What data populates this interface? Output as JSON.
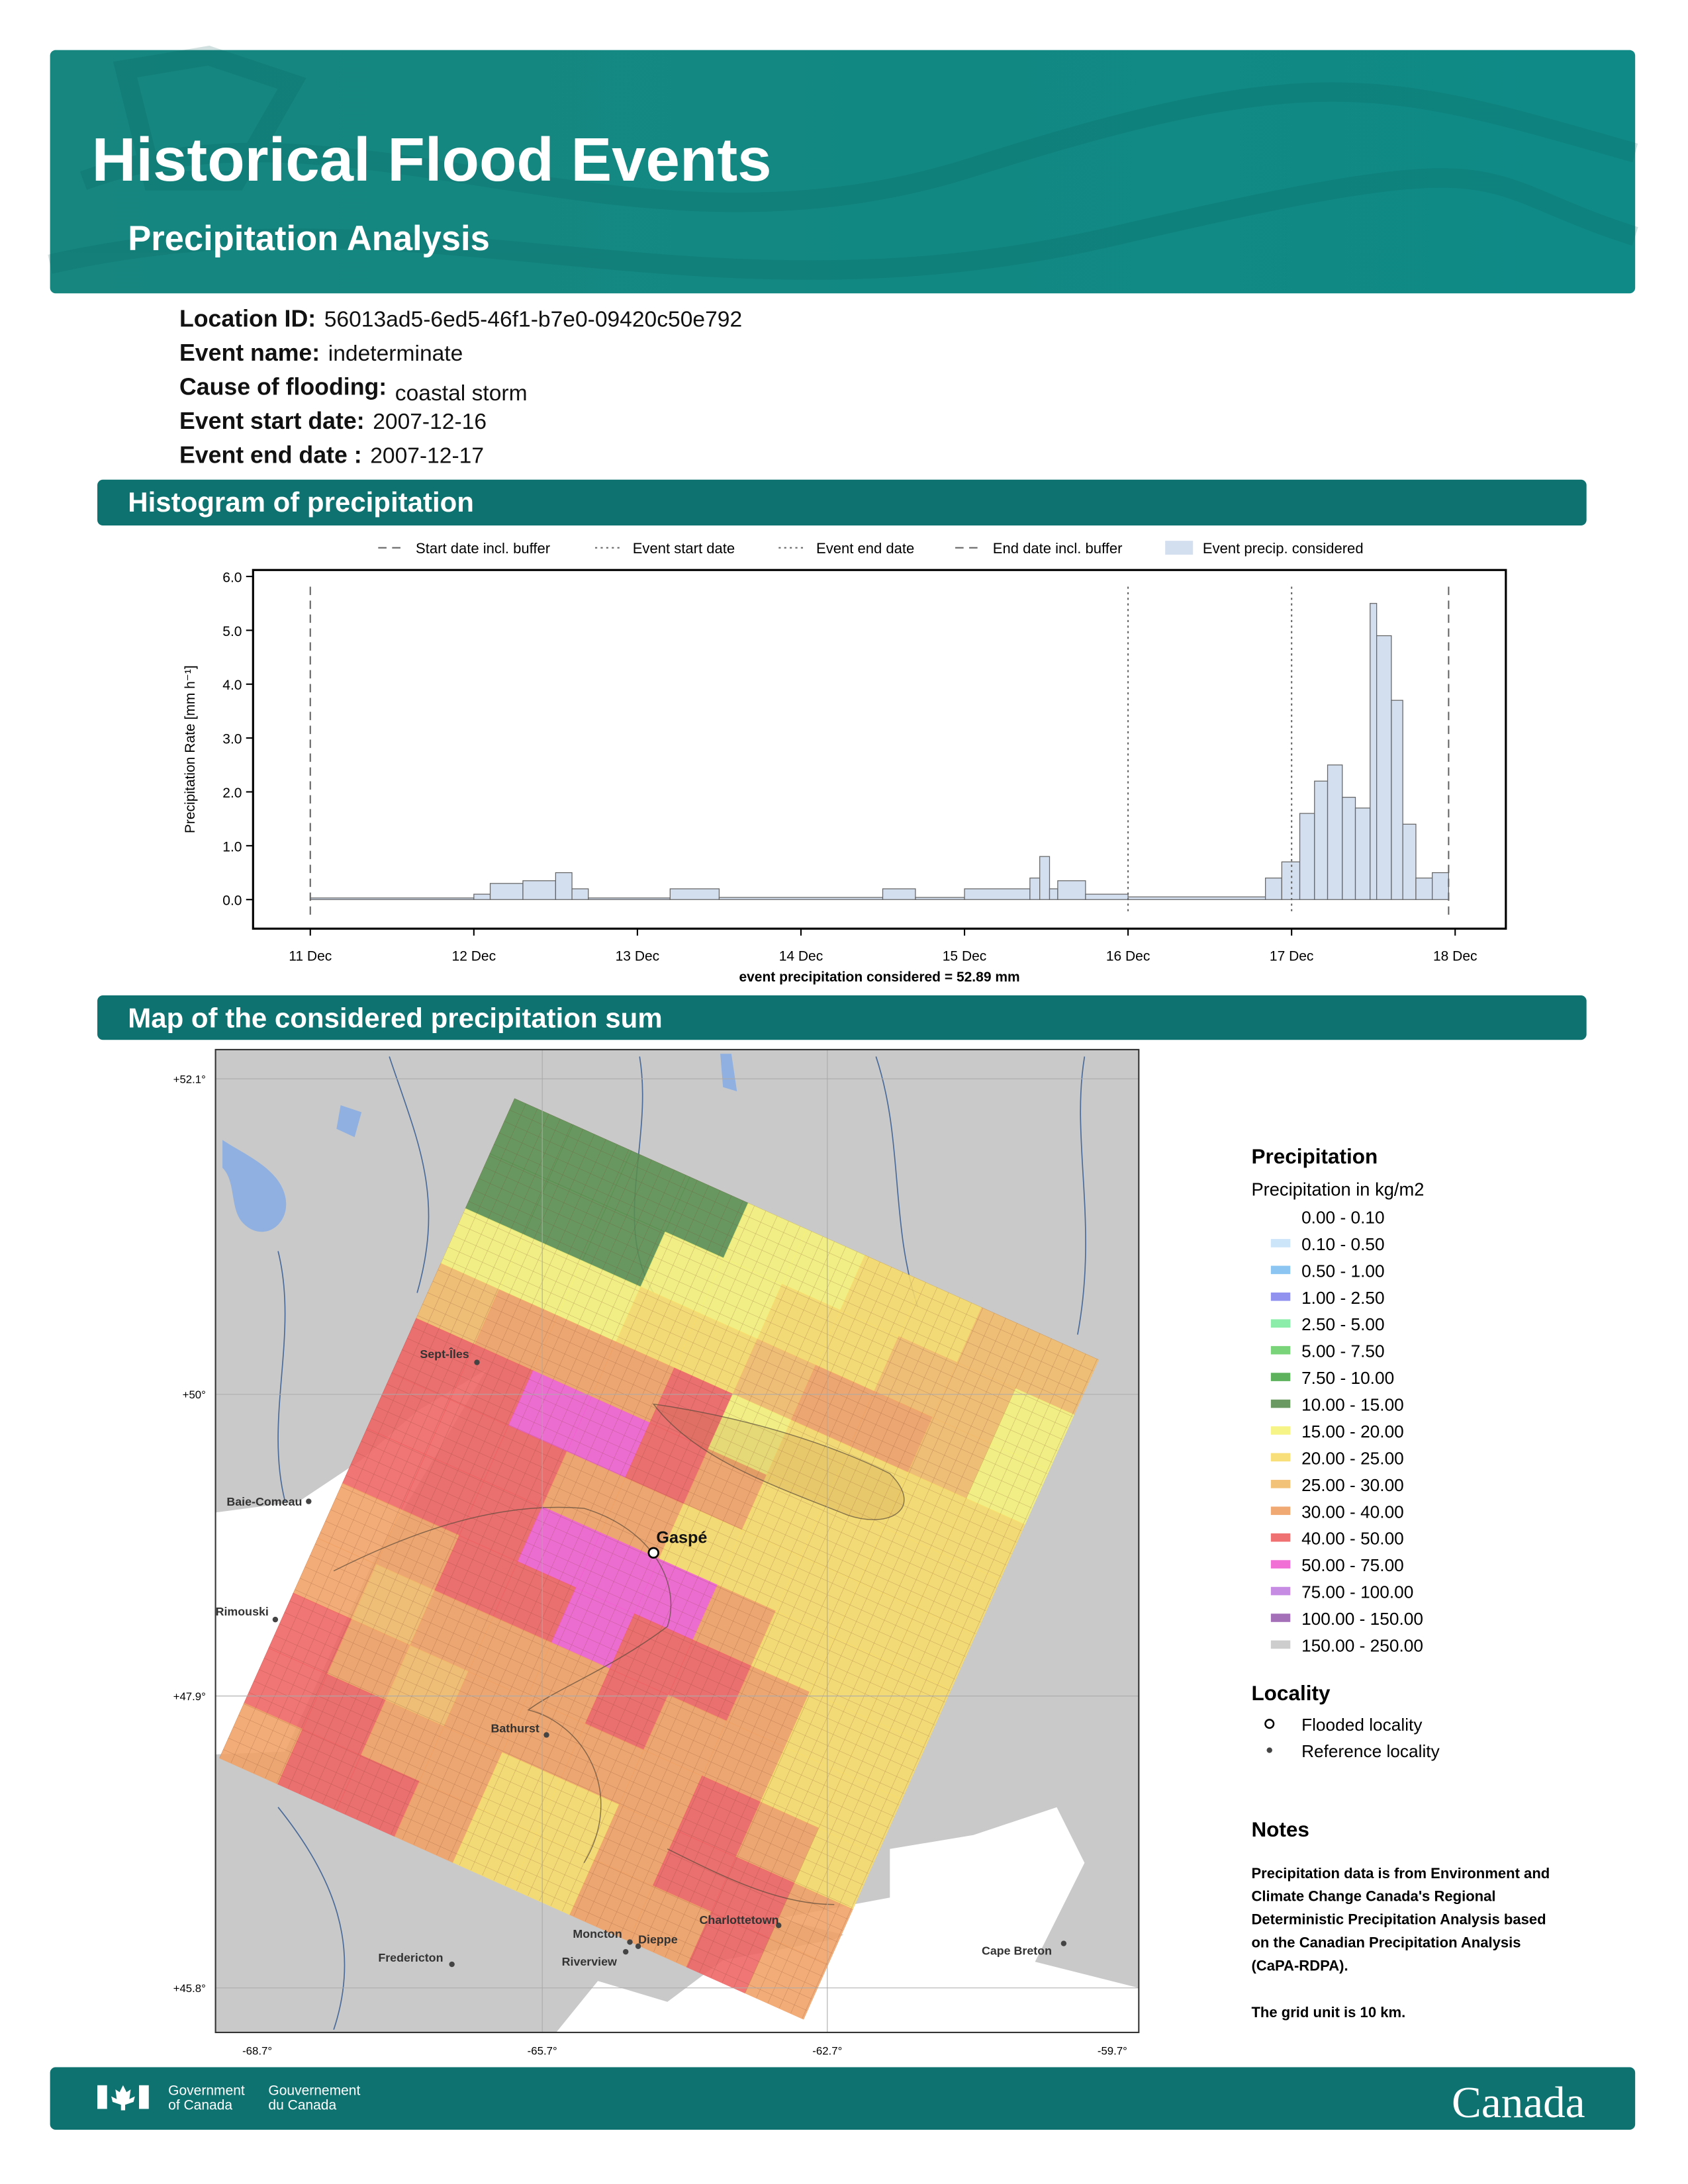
{
  "header": {
    "title": "Historical Flood Events",
    "subtitle": "Precipitation Analysis"
  },
  "event_info": [
    {
      "label": "Location ID:",
      "value": "56013ad5-6ed5-46f1-b7e0-09420c50e792"
    },
    {
      "label": "Event name:",
      "value": "indeterminate"
    },
    {
      "label": "Cause of flooding:",
      "value": "coastal storm"
    },
    {
      "label": "Event start date:",
      "value": "2007-12-16"
    },
    {
      "label": "Event end date :",
      "value": "2007-12-17"
    }
  ],
  "sections": [
    "Histogram of precipitation",
    "Map of the considered precipitation sum"
  ],
  "chart_data": {
    "type": "histogram",
    "ylabel": "Precipitation Rate [mm h⁻¹]",
    "xlabel": "event precipitation considered = 52.89 mm",
    "bins": [
      0,
      1.0,
      1.1,
      1.3,
      1.5,
      1.6,
      1.7,
      2.2,
      2.5,
      3.5,
      3.7,
      4.0,
      4.4,
      4.46,
      4.52,
      4.57,
      4.74,
      5.0,
      5.84,
      5.94,
      6.05,
      6.14,
      6.22,
      6.31,
      6.39,
      6.48,
      6.52,
      6.61,
      6.68,
      6.76,
      6.86,
      6.96
    ],
    "values": [
      0.03,
      0.1,
      0.3,
      0.35,
      0.5,
      0.2,
      0.03,
      0.2,
      0.04,
      0.2,
      0.04,
      0.2,
      0.4,
      0.8,
      0.2,
      0.35,
      0.1,
      0.05,
      0.4,
      0.7,
      1.6,
      2.2,
      2.5,
      1.9,
      1.7,
      5.5,
      4.9,
      3.7,
      1.4,
      0.4,
      0.5
    ],
    "color": "#d3deef",
    "edge_color": "#666666",
    "fill_name": "Event precip. considered",
    "vlines": [
      {
        "name": "Start date incl. buffer",
        "x": 0,
        "style": "dashed"
      },
      {
        "name": "Event start date",
        "x": 5,
        "style": "dotted"
      },
      {
        "name": "Event end date",
        "x": 6,
        "style": "dotted"
      },
      {
        "name": "End date incl. buffer",
        "x": 6.96,
        "style": "dashed"
      }
    ],
    "xlim": [
      -0.35,
      7.31
    ],
    "ylim": [
      -0.54,
      6.12
    ],
    "xticks": [
      {
        "value": 0,
        "label": "11 Dec"
      },
      {
        "value": 1,
        "label": "12 Dec"
      },
      {
        "value": 2,
        "label": "13 Dec"
      },
      {
        "value": 3,
        "label": "14 Dec"
      },
      {
        "value": 4,
        "label": "15 Dec"
      },
      {
        "value": 5,
        "label": "16 Dec"
      },
      {
        "value": 6,
        "label": "17 Dec"
      },
      {
        "value": 7,
        "label": "18 Dec"
      }
    ],
    "yticks": [
      {
        "value": 0,
        "label": "0.0"
      },
      {
        "value": 1,
        "label": "1.0"
      },
      {
        "value": 2,
        "label": "2.0"
      },
      {
        "value": 3,
        "label": "3.0"
      },
      {
        "value": 4,
        "label": "4.0"
      },
      {
        "value": 5,
        "label": "5.0"
      },
      {
        "value": 6,
        "label": "6.0"
      }
    ]
  },
  "map": {
    "lat_labels": [
      "+52.1°",
      "+50°",
      "+47.9°",
      "+45.8°"
    ],
    "lon_labels": [
      "-68.7°",
      "-65.7°",
      "-62.7°",
      "-59.7°"
    ],
    "flooded_localities": [
      "Gaspé"
    ],
    "reference_localities": [
      "Sept-Îles",
      "Baie-Comeau",
      "Rimouski",
      "Bathurst",
      "Moncton",
      "Dieppe",
      "Riverview",
      "Charlottetown",
      "Fredericton",
      "Cape Breton"
    ],
    "legend_title": "Precipitation",
    "legend_subtitle": "Precipitation in kg/m2",
    "classes": [
      {
        "label": "0.00 - 0.10",
        "color": "#ffffff"
      },
      {
        "label": "0.10 - 0.50",
        "color": "#c6e2f8"
      },
      {
        "label": "0.50 - 1.00",
        "color": "#7fbfef"
      },
      {
        "label": "1.00 - 2.50",
        "color": "#8585ee"
      },
      {
        "label": "2.50 - 5.00",
        "color": "#7feaa0"
      },
      {
        "label": "5.00 - 7.50",
        "color": "#6cd06c"
      },
      {
        "label": "7.50 - 10.00",
        "color": "#4caa4c"
      },
      {
        "label": "10.00 - 15.00",
        "color": "#5a8f50"
      },
      {
        "label": "15.00 - 20.00",
        "color": "#f5f27a"
      },
      {
        "label": "20.00 - 25.00",
        "color": "#f7dc6a"
      },
      {
        "label": "25.00 - 30.00",
        "color": "#f2bb6a"
      },
      {
        "label": "30.00 - 40.00",
        "color": "#f0a064"
      },
      {
        "label": "40.00 - 50.00",
        "color": "#ee6262"
      },
      {
        "label": "50.00 - 75.00",
        "color": "#f060d0"
      },
      {
        "label": "75.00 - 100.00",
        "color": "#c080e0"
      },
      {
        "label": "100.00 - 150.00",
        "color": "#9a60b0"
      },
      {
        "label": "150.00 - 250.00",
        "color": "#c8c8c8"
      }
    ],
    "locality_title": "Locality",
    "locality_items": [
      "Flooded locality",
      "Reference locality"
    ]
  },
  "notes": {
    "title": "Notes",
    "lines": [
      "Precipitation data is from Environment and",
      "Climate Change Canada's Regional",
      "Deterministic Precipitation Analysis based",
      "on the Canadian Precipitation Analysis",
      "(CaPA-RDPA)."
    ],
    "grid_unit": "The grid unit is 10 km."
  },
  "footer": {
    "gov_en": [
      "Government",
      "of Canada"
    ],
    "gov_fr": [
      "Gouvernement",
      "du Canada"
    ],
    "wordmark": "Canada"
  }
}
